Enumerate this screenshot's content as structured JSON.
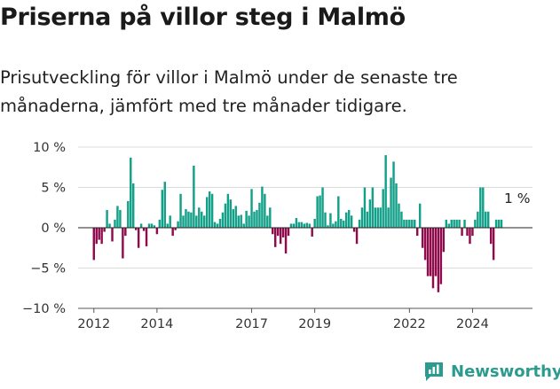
{
  "header": {
    "title": "Priserna på villor steg i Malmö",
    "subtitle": "Prisutveckling för villor i Malmö under de senaste tre månaderna, jämfört med tre månader tidigare."
  },
  "brand": {
    "name": "Newsworthy",
    "icon": "newsworthy-logo-icon",
    "color": "#2b9b8f"
  },
  "chart_data": {
    "type": "bar",
    "title": "",
    "xlabel": "",
    "ylabel": "",
    "ylim": [
      -10,
      10
    ],
    "yticks": [
      10,
      5,
      0,
      -5,
      -10
    ],
    "ytick_labels": [
      "10 %",
      "5 %",
      "0 %",
      "−5 %",
      "−10 %"
    ],
    "xlim": [
      2011.5,
      2025.9
    ],
    "xticks": [
      2012,
      2014,
      2017,
      2019,
      2022,
      2024
    ],
    "xtick_labels": [
      "2012",
      "2014",
      "2017",
      "2019",
      "2022",
      "2024"
    ],
    "positive_color": "#12a089",
    "negative_color": "#8f0b4c",
    "last_value_label": "1 %",
    "x_start": 2012.0,
    "x_step": 0.08333,
    "values": [
      -4,
      -2,
      -1.5,
      -2,
      -0.5,
      2.2,
      0.5,
      -1.7,
      1,
      2.7,
      2.2,
      -3.8,
      -1,
      3.3,
      8.7,
      5.5,
      -0.3,
      -2.5,
      0.5,
      -0.4,
      -2.3,
      0.5,
      0.5,
      0.3,
      -0.8,
      1,
      4.7,
      5.7,
      0.5,
      1.5,
      -1,
      -0.3,
      0.8,
      4.2,
      1.5,
      2.3,
      2,
      1.9,
      7.7,
      1.5,
      2.5,
      2,
      1.5,
      3.8,
      4.5,
      4.2,
      0.7,
      0.5,
      1.1,
      1.9,
      3,
      4.2,
      3.5,
      2.3,
      2.7,
      1.5,
      1.6,
      0.5,
      2.1,
      1.5,
      4.8,
      2,
      2.2,
      3.1,
      5.1,
      4.2,
      1.5,
      2.5,
      -0.8,
      -2.4,
      -1,
      -2,
      -1.2,
      -3.2,
      -1,
      0.5,
      0.5,
      1.2,
      0.7,
      0.7,
      0.5,
      0.6,
      0.5,
      -1.1,
      1.1,
      3.9,
      4,
      5,
      1.9,
      0.3,
      1.8,
      0.5,
      0.8,
      3.9,
      1.1,
      0.9,
      1.9,
      2.2,
      1.5,
      -0.5,
      -2,
      1,
      2.5,
      5,
      2,
      3.5,
      5,
      2.5,
      2.5,
      2.5,
      4.8,
      9,
      2.5,
      6.2,
      8.2,
      5.5,
      3,
      2,
      1,
      1,
      1,
      1,
      1,
      -1,
      3,
      -2.5,
      -4,
      -6,
      -6,
      -7.5,
      -6,
      -8,
      -7,
      -3,
      1,
      0.5,
      1,
      1,
      1,
      1,
      -1,
      1,
      -1,
      -2,
      -1,
      1,
      2,
      5,
      5,
      2,
      2,
      -2,
      -4,
      1,
      1,
      1
    ]
  }
}
